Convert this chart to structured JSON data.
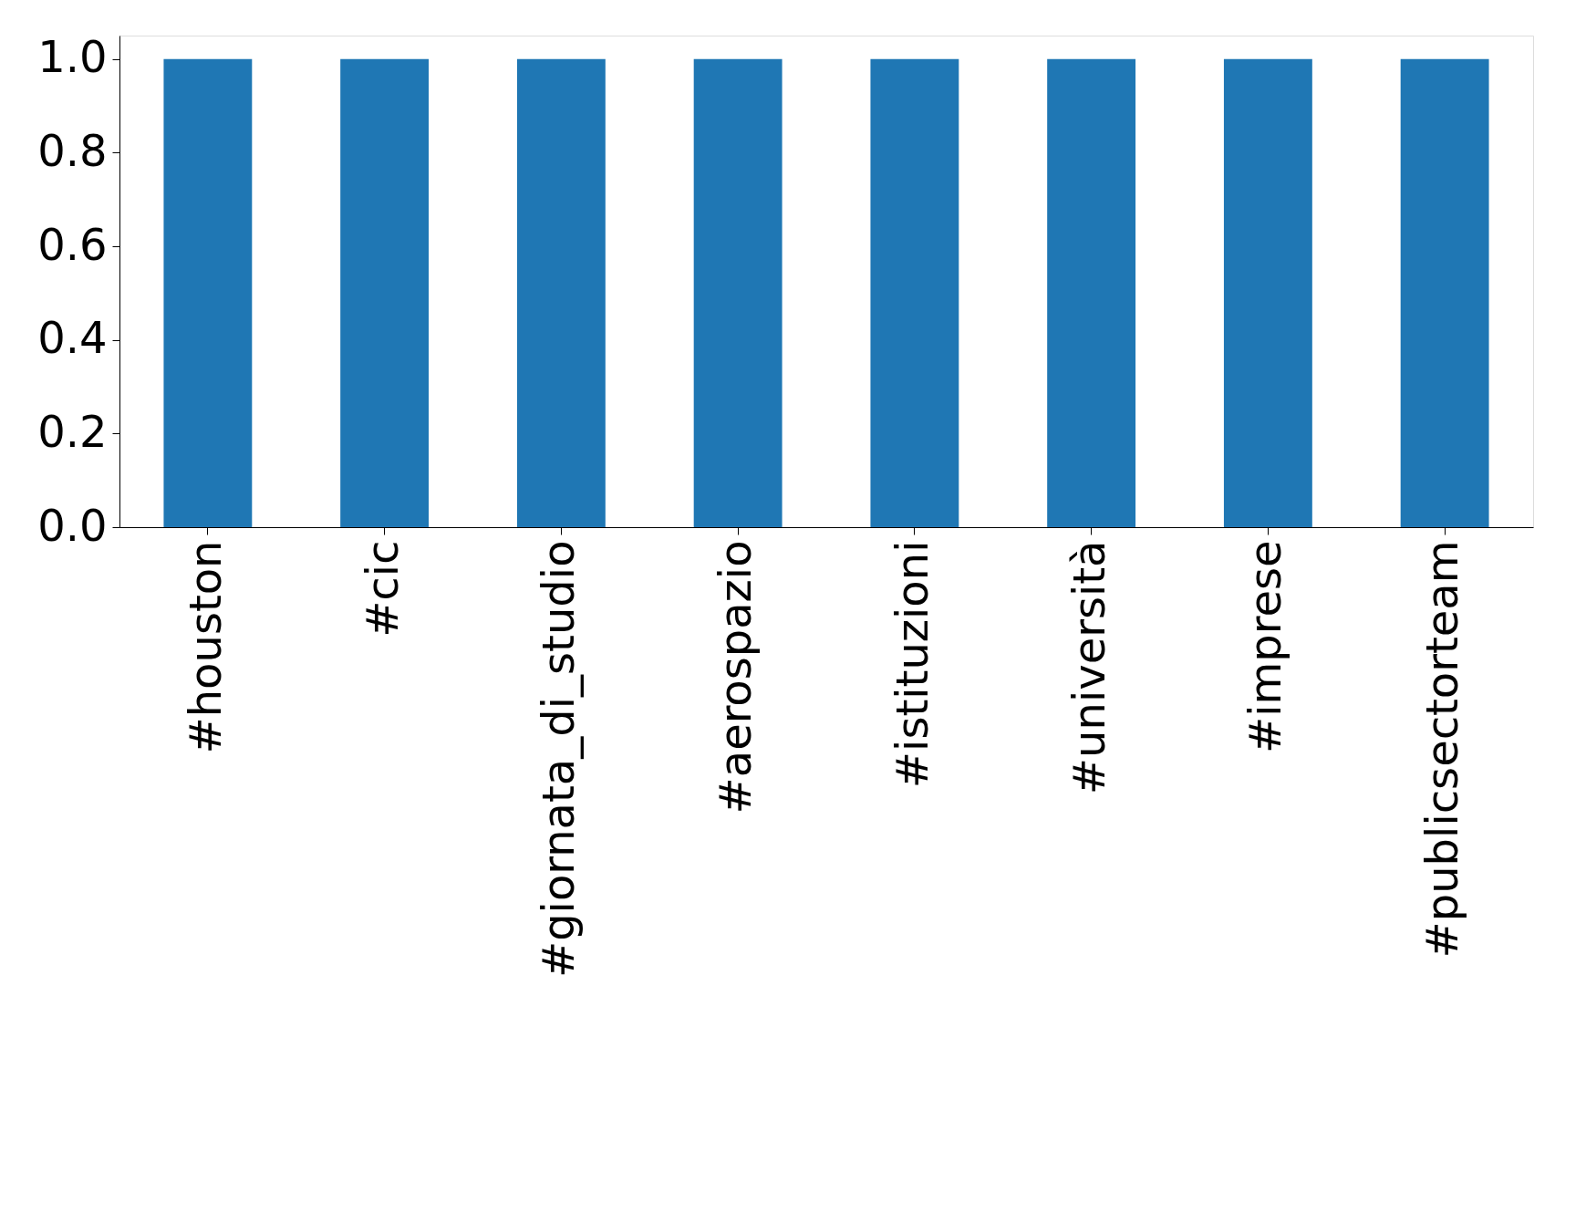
{
  "chart_data": {
    "type": "bar",
    "categories": [
      "#houston",
      "#cic",
      "#giornata_di_studio",
      "#aerospazio",
      "#istituzioni",
      "#università",
      "#imprese",
      "#publicsectorteam"
    ],
    "values": [
      1,
      1,
      1,
      1,
      1,
      1,
      1,
      1
    ],
    "color": "#1f77b4",
    "ylim": [
      0,
      1.05
    ],
    "yticks": [
      {
        "value": 0,
        "label": "0.0"
      },
      0.2,
      0.4,
      0.6,
      0.8,
      {
        "value": 1,
        "label": "1.0"
      }
    ],
    "grid": false
  }
}
